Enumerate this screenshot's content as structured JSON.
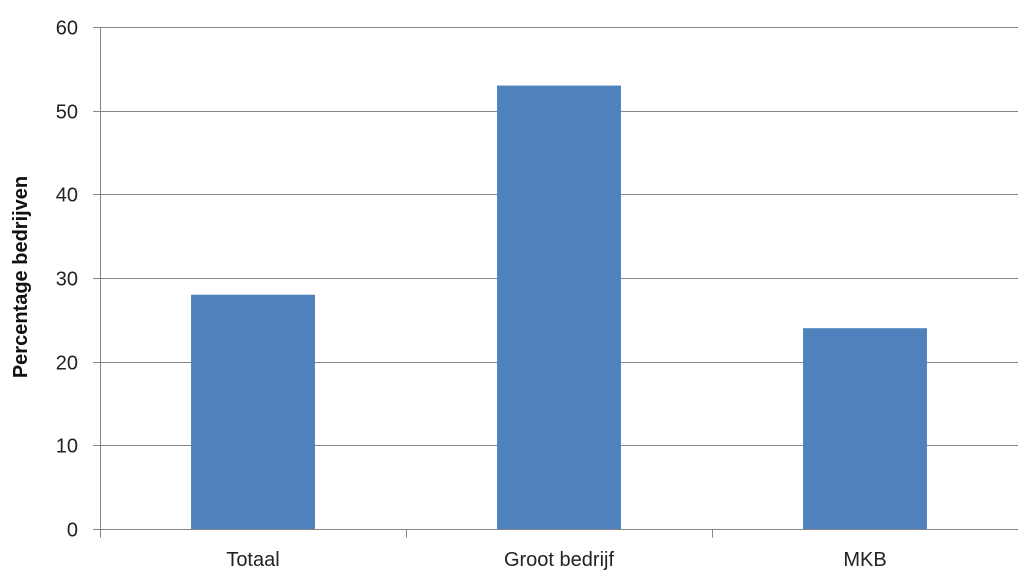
{
  "chart_data": {
    "type": "bar",
    "title": "",
    "xlabel": "",
    "ylabel": "Percentage bedrijven",
    "categories": [
      "Totaal",
      "Groot bedrijf",
      "MKB"
    ],
    "values": [
      28,
      53,
      24
    ],
    "ylim": [
      0,
      60
    ],
    "yticks": [
      0,
      10,
      20,
      30,
      40,
      50,
      60
    ],
    "grid": true,
    "legend": "none",
    "colors": {
      "bar": "#4f81bd",
      "grid": "#868686",
      "axis": "#868686"
    }
  }
}
